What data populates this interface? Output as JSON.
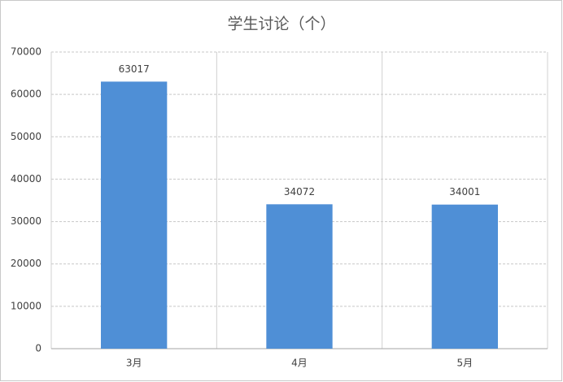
{
  "chart_data": {
    "type": "bar",
    "title": "学生讨论（个）",
    "categories": [
      "3月",
      "4月",
      "5月"
    ],
    "values": [
      63017,
      34072,
      34001
    ],
    "color": "#4f8fd6",
    "ylim": [
      0,
      70000
    ],
    "yticks": [
      0,
      10000,
      20000,
      30000,
      40000,
      50000,
      60000,
      70000
    ],
    "grid": true
  }
}
